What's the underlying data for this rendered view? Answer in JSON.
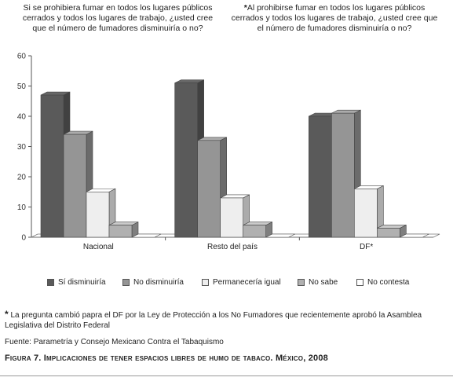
{
  "question_left": "Si se prohibiera fumar en todos los lugares públicos cerrados y todos los lugares de trabajo, ¿usted cree que el número de fumadores disminuiría o no?",
  "question_right_marker": "*",
  "question_right": "Al prohibirse fumar en todos los lugares públicos cerrados y todos los lugares de trabajo, ¿usted cree que el número de fumadores disminuiría o no?",
  "chart_data": {
    "type": "bar",
    "categories": [
      "Nacional",
      "Resto del país",
      "DF*"
    ],
    "series": [
      {
        "name": "Sí disminuiría",
        "values": [
          47,
          51,
          40
        ],
        "color": "#5a5a5a"
      },
      {
        "name": "No disminuiría",
        "values": [
          34,
          32,
          41
        ],
        "color": "#959595"
      },
      {
        "name": "Permanecería igual",
        "values": [
          15,
          13,
          16
        ],
        "color": "#eeeeee"
      },
      {
        "name": "No sabe",
        "values": [
          4,
          4,
          3
        ],
        "color": "#b0b0b0"
      },
      {
        "name": "No contesta",
        "values": [
          0,
          0,
          0
        ],
        "color": "#ffffff"
      }
    ],
    "yticks": [
      "0",
      "10",
      "20",
      "30",
      "40",
      "50",
      "60"
    ],
    "ylim": [
      0,
      60
    ],
    "grid": false,
    "legend_position": "bottom",
    "three_d": true
  },
  "footnote_marker": "*",
  "footnote": "La pregunta cambió papra el DF por la Ley de Protección a los No Fumadores que recientemente aprobó la Asamblea Legislativa del Distrito Federal",
  "source": "Fuente: Parametría y Consejo Mexicano Contra el Tabaquismo",
  "figure_caption": "Figura 7. Implicaciones de tener espacios libres de humo de tabaco. México, 2008"
}
